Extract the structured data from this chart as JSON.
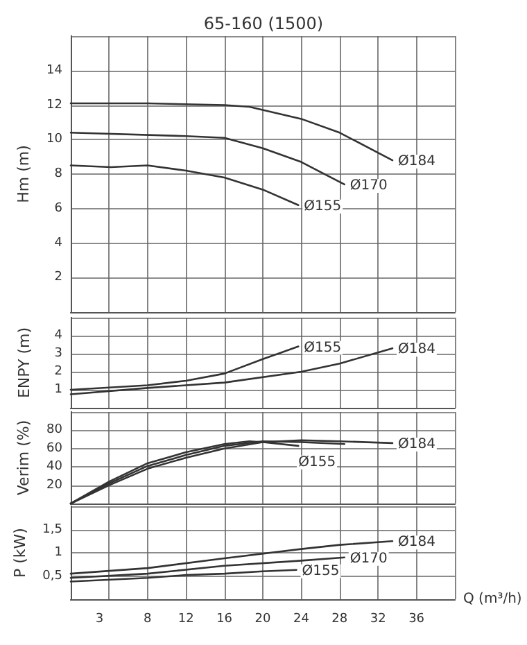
{
  "chart_data": [
    {
      "type": "line",
      "title": "65-160 (1500)",
      "ylabel": "Hm (m)",
      "xlim": [
        0,
        40
      ],
      "xticks": [
        3,
        8,
        12,
        16,
        20,
        24,
        28,
        32,
        36
      ],
      "ylim": [
        0,
        16
      ],
      "yticks": [
        2,
        4,
        6,
        8,
        10,
        12,
        14
      ],
      "tick_labels": "y",
      "grid": true,
      "legend": false,
      "marker": "none",
      "line_style": "solid",
      "series": [
        {
          "name": "Ø184",
          "color": "#333333",
          "x": [
            0,
            8,
            16,
            18.6,
            24,
            28,
            33.5
          ],
          "values": [
            12.1,
            12.1,
            12.0,
            11.9,
            11.2,
            10.4,
            8.8
          ]
        },
        {
          "name": "Ø170",
          "color": "#333333",
          "x": [
            0,
            12,
            16,
            20,
            24,
            28.5
          ],
          "values": [
            10.4,
            10.2,
            10.1,
            9.5,
            8.7,
            7.4
          ]
        },
        {
          "name": "Ø155",
          "color": "#333333",
          "x": [
            0,
            4.2,
            8,
            12,
            16,
            20,
            23.7
          ],
          "values": [
            8.5,
            8.4,
            8.5,
            8.2,
            7.8,
            7.1,
            6.2
          ]
        }
      ]
    },
    {
      "type": "line",
      "ylabel": "ENPY (m)",
      "xlim": [
        0,
        40
      ],
      "xticks": [
        3,
        8,
        12,
        16,
        20,
        24,
        28,
        32,
        36
      ],
      "ylim": [
        0,
        5
      ],
      "yticks": [
        1,
        2,
        3,
        4
      ],
      "tick_labels": "y",
      "grid": true,
      "legend": false,
      "marker": "none",
      "line_style": "solid",
      "series": [
        {
          "name": "Ø155",
          "color": "#333333",
          "x": [
            0,
            8,
            12,
            16,
            20,
            23.7
          ],
          "values": [
            1.0,
            1.25,
            1.5,
            1.9,
            2.7,
            3.4
          ]
        },
        {
          "name": "Ø184",
          "color": "#333333",
          "x": [
            0,
            8,
            16,
            24,
            28,
            33.5
          ],
          "values": [
            0.75,
            1.1,
            1.4,
            2.0,
            2.45,
            3.3
          ]
        }
      ]
    },
    {
      "type": "line",
      "ylabel": "Verim (%)",
      "xlim": [
        0,
        40
      ],
      "xticks": [
        3,
        8,
        12,
        16,
        20,
        24,
        28,
        32,
        36
      ],
      "ylim": [
        0,
        100
      ],
      "yticks": [
        20,
        40,
        60,
        80
      ],
      "tick_labels": "y",
      "grid": true,
      "legend": false,
      "marker": "none",
      "line_style": "solid",
      "series": [
        {
          "name": "Ø184",
          "color": "#333333",
          "x": [
            0,
            4,
            8,
            12,
            16,
            20,
            24,
            28,
            33.5
          ],
          "values": [
            0,
            20,
            38,
            50,
            60,
            67,
            69,
            68,
            66
          ]
        },
        {
          "color": "#333333",
          "x": [
            0,
            4,
            8,
            12,
            16,
            20,
            24,
            28.5
          ],
          "values": [
            0,
            22,
            41,
            53,
            63,
            68,
            67,
            65
          ]
        },
        {
          "name": "Ø155",
          "color": "#333333",
          "x": [
            0,
            4,
            8,
            12,
            16,
            18.6,
            20,
            23.7
          ],
          "values": [
            0,
            24,
            44,
            56,
            65,
            68,
            67,
            63
          ]
        }
      ]
    },
    {
      "type": "line",
      "ylabel": "P (kW)",
      "xlabel": "Q (m³/h)",
      "xlim": [
        0,
        40
      ],
      "xticks": [
        3,
        8,
        12,
        16,
        20,
        24,
        28,
        32,
        36
      ],
      "ylim": [
        0,
        2
      ],
      "yticks": [
        {
          "value": 0.5,
          "label": "0,5"
        },
        1,
        {
          "value": 1.5,
          "label": "1,5"
        }
      ],
      "grid": true,
      "legend": false,
      "marker": "none",
      "line_style": "solid",
      "series": [
        {
          "name": "Ø184",
          "color": "#333333",
          "x": [
            0,
            8,
            16,
            24,
            28,
            33.5
          ],
          "values": [
            0.55,
            0.67,
            0.88,
            1.08,
            1.17,
            1.25
          ]
        },
        {
          "name": "Ø170",
          "color": "#333333",
          "x": [
            0,
            8,
            16,
            24,
            28.5
          ],
          "values": [
            0.46,
            0.55,
            0.72,
            0.83,
            0.9
          ]
        },
        {
          "name": "Ø155",
          "color": "#333333",
          "x": [
            0,
            8,
            12,
            16,
            20,
            23.5
          ],
          "values": [
            0.38,
            0.46,
            0.52,
            0.55,
            0.6,
            0.63
          ]
        }
      ]
    }
  ]
}
